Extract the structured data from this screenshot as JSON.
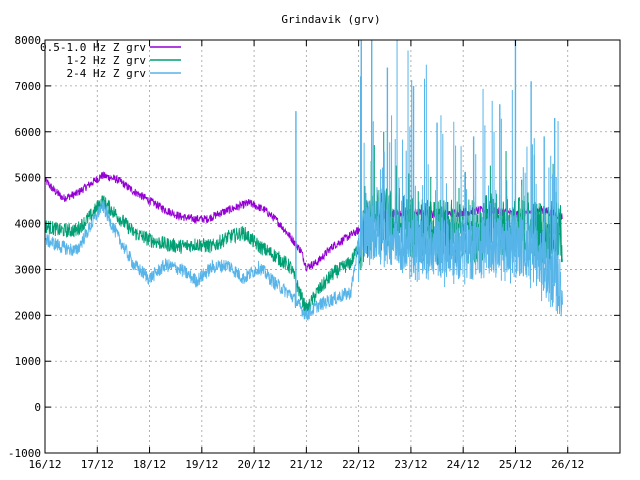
{
  "chart_data": {
    "type": "line",
    "title": "Grindavik (grv)",
    "xlabel": "",
    "ylabel": "",
    "xlim": [
      0,
      11
    ],
    "ylim": [
      -1000,
      8000
    ],
    "x_ticks": [
      {
        "value": 0,
        "label": "16/12"
      },
      {
        "value": 1,
        "label": "17/12"
      },
      {
        "value": 2,
        "label": "18/12"
      },
      {
        "value": 3,
        "label": "19/12"
      },
      {
        "value": 4,
        "label": "20/12"
      },
      {
        "value": 5,
        "label": "21/12"
      },
      {
        "value": 6,
        "label": "22/12"
      },
      {
        "value": 7,
        "label": "23/12"
      },
      {
        "value": 8,
        "label": "24/12"
      },
      {
        "value": 9,
        "label": "25/12"
      },
      {
        "value": 10,
        "label": "26/12"
      }
    ],
    "y_ticks": [
      {
        "value": -1000,
        "label": "-1000"
      },
      {
        "value": 0,
        "label": "0"
      },
      {
        "value": 1000,
        "label": "1000"
      },
      {
        "value": 2000,
        "label": "2000"
      },
      {
        "value": 3000,
        "label": "3000"
      },
      {
        "value": 4000,
        "label": "4000"
      },
      {
        "value": 5000,
        "label": "5000"
      },
      {
        "value": 6000,
        "label": "6000"
      },
      {
        "value": 7000,
        "label": "7000"
      },
      {
        "value": 8000,
        "label": "8000"
      }
    ],
    "grid": true,
    "legend_position": "top-left",
    "series": [
      {
        "name": "0.5-1.0 Hz Z grv",
        "color": "#9400d3",
        "x": [
          0.0,
          0.15,
          0.35,
          0.6,
          0.85,
          1.1,
          1.4,
          1.7,
          2.0,
          2.3,
          2.6,
          2.85,
          3.1,
          3.4,
          3.65,
          3.9,
          4.2,
          4.45,
          4.7,
          4.9,
          5.0,
          5.2,
          5.5,
          5.85,
          6.0,
          6.2,
          6.5,
          7.0,
          7.5,
          8.0,
          8.5,
          9.0,
          9.5,
          9.9
        ],
        "values": [
          4950,
          4750,
          4550,
          4650,
          4850,
          5050,
          4950,
          4700,
          4500,
          4300,
          4150,
          4100,
          4100,
          4250,
          4350,
          4450,
          4300,
          4050,
          3700,
          3400,
          3050,
          3150,
          3500,
          3750,
          3850,
          4000,
          4200,
          4250,
          4200,
          4250,
          4300,
          4200,
          4300,
          4150
        ],
        "spread": 90
      },
      {
        "name": "1-2 Hz Z grv",
        "color": "#009e73",
        "x": [
          0.0,
          0.3,
          0.6,
          0.9,
          1.1,
          1.4,
          1.7,
          2.0,
          2.3,
          2.6,
          2.9,
          3.2,
          3.5,
          3.8,
          4.1,
          4.4,
          4.7,
          5.0,
          5.2,
          5.5,
          5.85,
          6.0,
          6.2,
          6.5,
          7.0,
          7.5,
          8.0,
          8.5,
          9.0,
          9.5,
          9.9
        ],
        "values": [
          3950,
          3850,
          3850,
          4200,
          4500,
          4150,
          3800,
          3650,
          3550,
          3500,
          3550,
          3500,
          3700,
          3800,
          3500,
          3300,
          3050,
          2100,
          2500,
          2900,
          3150,
          3500,
          4000,
          4100,
          3900,
          3800,
          3800,
          3950,
          3900,
          3800,
          3750
        ],
        "spread": 160
      },
      {
        "name": "2-4 Hz Z grv",
        "color": "#56b4e9",
        "x": [
          0.0,
          0.3,
          0.6,
          0.9,
          1.1,
          1.4,
          1.7,
          2.0,
          2.3,
          2.6,
          2.9,
          3.2,
          3.5,
          3.8,
          4.1,
          4.4,
          4.7,
          5.0,
          5.2,
          5.5,
          5.85,
          6.0,
          6.2,
          6.5,
          7.0,
          7.5,
          8.0,
          8.5,
          9.0,
          9.5,
          9.9
        ],
        "values": [
          3650,
          3500,
          3400,
          4000,
          4400,
          3700,
          3100,
          2800,
          3100,
          3000,
          2750,
          3050,
          3100,
          2800,
          3050,
          2700,
          2450,
          2000,
          2200,
          2350,
          2500,
          3600,
          3900,
          3800,
          3600,
          3500,
          3400,
          3500,
          3600,
          3200,
          2500
        ],
        "spread": 150,
        "spikes": [
          {
            "x": 4.8,
            "value": 6450
          },
          {
            "x": 6.05,
            "value": 8000
          },
          {
            "x": 6.25,
            "value": 8000
          },
          {
            "x": 6.55,
            "value": 7400
          },
          {
            "x": 7.05,
            "value": 7000
          },
          {
            "x": 7.5,
            "value": 6200
          },
          {
            "x": 8.2,
            "value": 5900
          },
          {
            "x": 8.7,
            "value": 6600
          },
          {
            "x": 9.0,
            "value": 8000
          },
          {
            "x": 9.3,
            "value": 7100
          },
          {
            "x": 9.55,
            "value": 5900
          },
          {
            "x": 9.75,
            "value": 6300
          }
        ]
      }
    ]
  }
}
